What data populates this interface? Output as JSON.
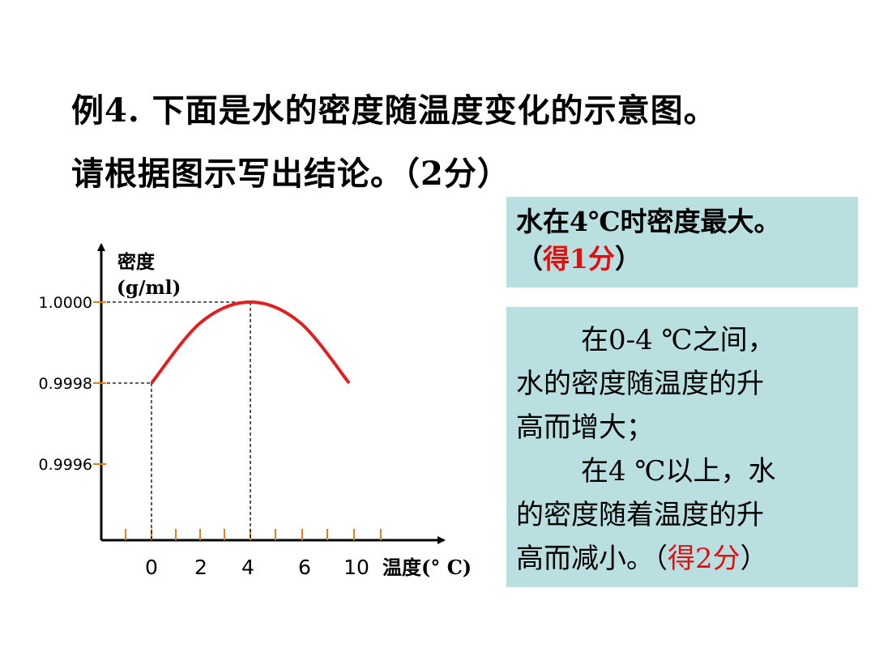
{
  "title_line1": "例4. 下面是水的密度随温度变化的示意图。",
  "title_line2": "请根据图示写出结论。（2分）",
  "answer1": {
    "line1": "水在4℃时密度最大。",
    "line2_open": "（",
    "line2_red": "得1分",
    "line2_close": "）"
  },
  "answer2": {
    "line1": "在0-4 ℃之间，",
    "line2": "水的密度随温度的升",
    "line3": "高而增大；",
    "line4": "在4 ℃以上，水",
    "line5": "的密度随着温度的升",
    "line6_text": "高而减小。（",
    "line6_red": "得2分",
    "line6_close": "）"
  },
  "colors": {
    "curve": "#e02020",
    "tick": "#e08020",
    "box_bg": "#b9dfe0",
    "highlight": "#e01010"
  },
  "chart_data": {
    "type": "line",
    "ylabel_line1": "密度",
    "ylabel_line2": "(g/ml)",
    "xlabel": "温度(° C)",
    "x_tick_labels": [
      "0",
      "2",
      "4",
      "6",
      "10"
    ],
    "y_tick_labels": [
      "1.0000",
      "0.9998",
      "0.9996"
    ],
    "y_ticks": [
      1.0,
      0.9998,
      0.9996
    ],
    "curve_points": [
      {
        "x": 0,
        "y": 0.9998
      },
      {
        "x": 2,
        "y": 0.99995
      },
      {
        "x": 4,
        "y": 1.0
      },
      {
        "x": 6,
        "y": 0.99995
      },
      {
        "x": 8,
        "y": 0.9998
      }
    ],
    "max_point": {
      "x": 4,
      "y": 1.0
    }
  }
}
